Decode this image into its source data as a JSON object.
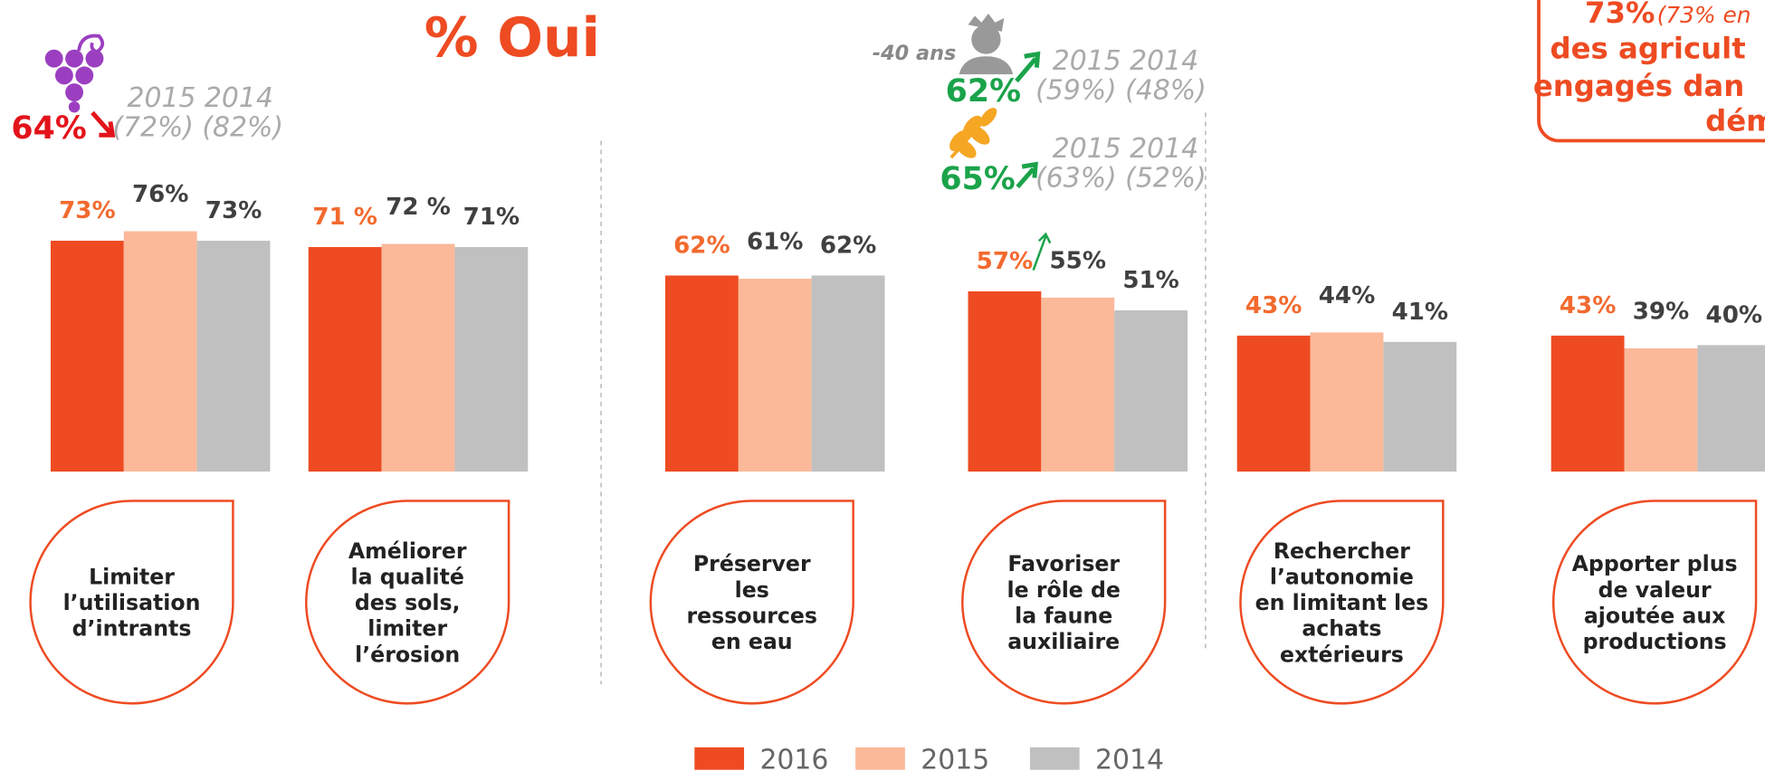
{
  "chart_data": {
    "type": "bar",
    "title": "% Oui",
    "categories": [
      [
        "Limiter",
        "l’utilisation",
        "d’intrants"
      ],
      [
        "Améliorer",
        "la qualité",
        "des sols,",
        "limiter",
        "l’érosion"
      ],
      [
        "Préserver",
        "les",
        "ressources",
        "en eau"
      ],
      [
        "Favoriser",
        "le rôle de",
        "la faune",
        "auxiliaire"
      ],
      [
        "Rechercher",
        "l’autonomie",
        "en limitant les",
        "achats",
        "extérieurs"
      ],
      [
        "Apporter plus",
        "de valeur",
        "ajoutée aux",
        "productions"
      ]
    ],
    "series": [
      {
        "name": "2016",
        "color": "#ee4b22",
        "values": [
          73,
          71,
          62,
          57,
          43,
          43
        ],
        "value_labels": [
          "73%",
          "71 %",
          "62%",
          "57%",
          "43%",
          "43%"
        ]
      },
      {
        "name": "2015",
        "color": "#fbb99a",
        "values": [
          76,
          72,
          61,
          55,
          44,
          39
        ],
        "value_labels": [
          "76%",
          "72 %",
          "61%",
          "55%",
          "44%",
          "39%"
        ]
      },
      {
        "name": "2014",
        "color": "#c0c0c0",
        "values": [
          73,
          71,
          62,
          51,
          41,
          40
        ],
        "value_labels": [
          "73%",
          "71%",
          "62%",
          "51%",
          "41%",
          "40%"
        ]
      }
    ],
    "annotations": {
      "grape": {
        "value": "64%",
        "years": "2015 2014",
        "past": "(72%) (82%)"
      },
      "young": {
        "label": "-40 ans",
        "value": "62%",
        "years": "2015 2014",
        "past": "(59%) (48%)"
      },
      "wheat": {
        "value": "65%",
        "years": "2015 2014",
        "past": "(63%) (52%)"
      },
      "box": {
        "value": "73%",
        "note": "(73% en",
        "lines": [
          "des agricult",
          "engagés dan",
          "dém"
        ]
      }
    }
  }
}
